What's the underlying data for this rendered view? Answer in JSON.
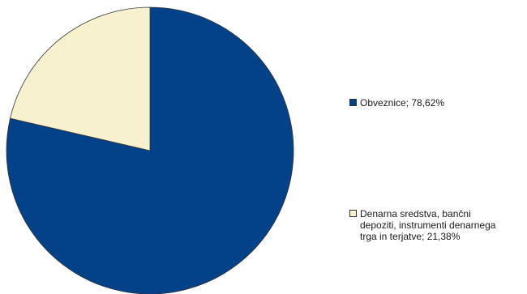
{
  "chart_data": {
    "type": "pie",
    "title": "",
    "legend_position": "right",
    "slices": [
      {
        "label": "Obveznice; 78,62%",
        "value": 78.62,
        "color": "#034288"
      },
      {
        "label": "Denarna sredstva, bančni\ndepoziti, instrumenti denarnega\ntrga in terjatve; 21,38%",
        "value": 21.38,
        "color": "#f8f1d0"
      }
    ]
  },
  "colors": {
    "outline": "#333333"
  }
}
